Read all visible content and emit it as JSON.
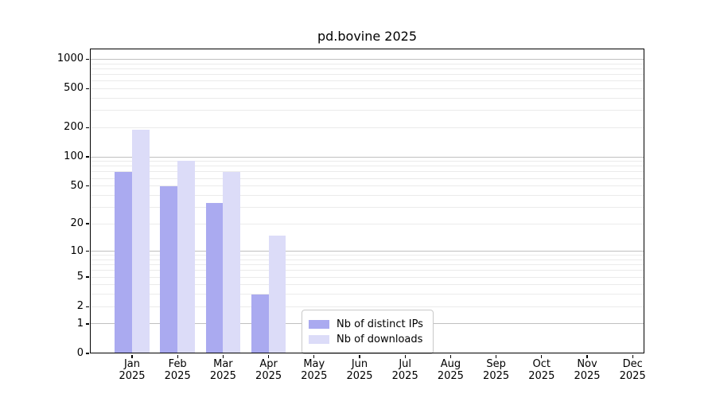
{
  "chart_data": {
    "type": "bar",
    "title": "pd.bovine 2025",
    "categories": [
      "Jan",
      "Feb",
      "Mar",
      "Apr",
      "May",
      "Jun",
      "Jul",
      "Aug",
      "Sep",
      "Oct",
      "Nov",
      "Dec"
    ],
    "year_label": "2025",
    "series": [
      {
        "name": "Nb of distinct IPs",
        "values": [
          70,
          50,
          33,
          3,
          0,
          0,
          0,
          0,
          0,
          0,
          0,
          0
        ]
      },
      {
        "name": "Nb of downloads",
        "values": [
          190,
          92,
          70,
          15,
          0,
          0,
          0,
          0,
          0,
          0,
          0,
          0
        ]
      }
    ],
    "y_ticks": [
      0,
      1,
      2,
      5,
      10,
      20,
      50,
      100,
      200,
      500,
      1000
    ],
    "y_scale": "log1p",
    "ylim": [
      0,
      1285
    ],
    "xlabel": "",
    "ylabel": "",
    "grid": true,
    "legend_position": "inside lower-center"
  },
  "colors": {
    "distinct_ips": "#aaaaf0",
    "downloads": "#dcdcf8",
    "grid_major": "#c0c0c0",
    "grid_minor": "#ebebeb",
    "axis": "#000000",
    "legend_border": "#c9c9c9"
  }
}
